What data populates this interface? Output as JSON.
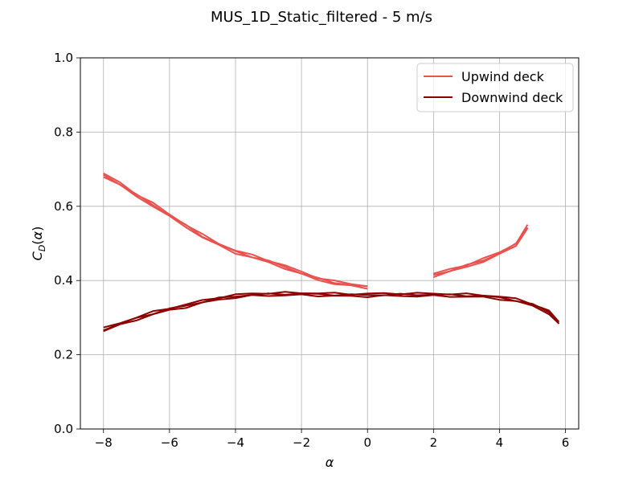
{
  "chart_data": {
    "type": "line",
    "title": "MUS_1D_Static_filtered - 5 m/s",
    "xlabel": "α",
    "ylabel": "C_D(α)",
    "xlim": [
      -8.7,
      6.4
    ],
    "ylim": [
      0.0,
      1.0
    ],
    "xticks": [
      -8,
      -6,
      -4,
      -2,
      0,
      2,
      4,
      6
    ],
    "xtick_labels": [
      "−8",
      "−6",
      "−4",
      "−2",
      "0",
      "2",
      "4",
      "6"
    ],
    "yticks": [
      0.0,
      0.2,
      0.4,
      0.6,
      0.8,
      1.0
    ],
    "ytick_labels": [
      "0.0",
      "0.2",
      "0.4",
      "0.6",
      "0.8",
      "1.0"
    ],
    "grid": true,
    "legend_position": "top-right",
    "colors": {
      "upwind": "#e8524f",
      "downwind": "#8b0000"
    },
    "series": [
      {
        "name": "Upwind deck",
        "color": "#e8524f",
        "segments": [
          {
            "x": [
              -8.0,
              -7.5,
              -7.0,
              -6.5,
              -6.0,
              -5.5,
              -5.0,
              -4.5,
              -4.0,
              -3.5,
              -3.0,
              -2.5,
              -2.0,
              -1.5,
              -1.0,
              -0.5,
              0.0
            ],
            "y": [
              0.685,
              0.66,
              0.63,
              0.605,
              0.575,
              0.548,
              0.52,
              0.497,
              0.478,
              0.465,
              0.452,
              0.437,
              0.42,
              0.405,
              0.395,
              0.388,
              0.383
            ]
          },
          {
            "x": [
              2.0,
              2.5,
              3.0,
              3.5,
              4.0,
              4.5,
              4.85
            ],
            "y": [
              0.415,
              0.427,
              0.44,
              0.455,
              0.473,
              0.498,
              0.545
            ]
          }
        ]
      },
      {
        "name": "Downwind deck",
        "color": "#8b0000",
        "segments": [
          {
            "x": [
              -8.0,
              -7.5,
              -7.0,
              -6.5,
              -6.0,
              -5.5,
              -5.0,
              -4.5,
              -4.0,
              -3.5,
              -3.0,
              -2.5,
              -2.0,
              -1.5,
              -1.0,
              -0.5,
              0.0,
              0.5,
              1.0,
              1.5,
              2.0,
              2.5,
              3.0,
              3.5,
              4.0,
              4.5,
              5.0,
              5.5,
              5.8
            ],
            "y": [
              0.268,
              0.283,
              0.298,
              0.312,
              0.323,
              0.332,
              0.343,
              0.352,
              0.358,
              0.362,
              0.363,
              0.364,
              0.364,
              0.363,
              0.362,
              0.361,
              0.361,
              0.362,
              0.362,
              0.362,
              0.362,
              0.361,
              0.36,
              0.358,
              0.354,
              0.347,
              0.335,
              0.315,
              0.285
            ]
          }
        ]
      }
    ]
  }
}
